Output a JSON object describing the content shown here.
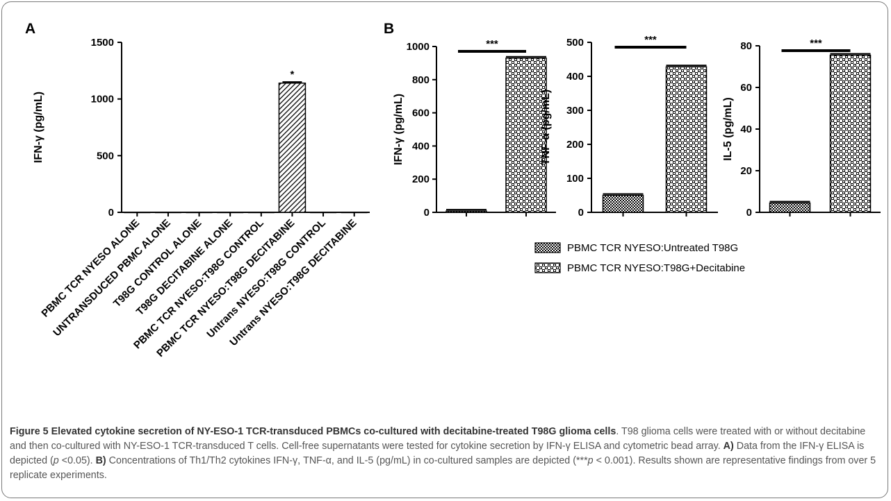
{
  "chart_data": [
    {
      "panel": "A",
      "type": "bar",
      "ylabel": "IFN-γ (pg/mL)",
      "ylim": [
        0,
        1500
      ],
      "yticks": [
        0,
        500,
        1000,
        1500
      ],
      "categories": [
        "PBMC TCR NYESO ALONE",
        "UNTRANSDUCED PBMC ALONE",
        "T98G CONTROL ALONE",
        "T98G DECITABINE ALONE",
        "PBMC TCR NYESO:T98G CONTROL",
        "PBMC TCR NYESO:T98G DECITABINE",
        "Untrans NYESO:T98G CONTROL",
        "Untrans NYESO:T98G DECITABINE"
      ],
      "values": [
        2,
        2,
        2,
        2,
        2,
        1140,
        2,
        2
      ],
      "errors": [
        0,
        0,
        0,
        0,
        0,
        10,
        0,
        0
      ],
      "annotations": [
        {
          "category": "PBMC TCR NYESO:T98G DECITABINE",
          "text": "*"
        }
      ]
    },
    {
      "panel": "B",
      "type": "bar",
      "ylabel": "IFN-γ (pg/mL)",
      "ylim": [
        0,
        1000
      ],
      "yticks": [
        0,
        200,
        400,
        600,
        800,
        1000
      ],
      "series": [
        {
          "name": "PBMC TCR NYESO:Untreated T98G",
          "values": [
            8
          ]
        },
        {
          "name": "PBMC TCR NYESO:T98G+Decitabine",
          "values": [
            930
          ]
        }
      ],
      "annotations": [
        {
          "text": "***"
        }
      ]
    },
    {
      "type": "bar",
      "ylabel": "TNF-α (pg/mL)",
      "ylim": [
        0,
        500
      ],
      "yticks": [
        0,
        100,
        200,
        300,
        400,
        500
      ],
      "series": [
        {
          "name": "PBMC TCR NYESO:Untreated T98G",
          "values": [
            50
          ]
        },
        {
          "name": "PBMC TCR NYESO:T98G+Decitabine",
          "values": [
            428
          ]
        }
      ],
      "annotations": [
        {
          "text": "***"
        }
      ]
    },
    {
      "type": "bar",
      "ylabel": "IL-5 (pg/mL)",
      "ylim": [
        0,
        80
      ],
      "yticks": [
        0,
        20,
        40,
        60,
        80
      ],
      "series": [
        {
          "name": "PBMC TCR NYESO:Untreated T98G",
          "values": [
            4.5
          ]
        },
        {
          "name": "PBMC TCR NYESO:T98G+Decitabine",
          "values": [
            75.5
          ]
        }
      ],
      "annotations": [
        {
          "text": "***"
        }
      ]
    }
  ],
  "legend": [
    "PBMC TCR NYESO:Untreated T98G",
    "PBMC TCR NYESO:T98G+Decitabine"
  ],
  "caption": {
    "figure_label": "Figure 5 Elevated cytokine secretion of NY-ESO-1 TCR-transduced PBMCs co-cultured with decitabine-treated T98G glioma cells",
    "text_1": ". T98 glioma cells were treated with or without decitabine and then co-cultured with NY-ESO-1 TCR-transduced T cells. Cell-free supernatants were tested for cytokine secretion by IFN-γ ELISA and cytometric bead array. ",
    "a_label": "A)",
    "text_2": " Data from the IFN-γ ELISA is depicted (",
    "p_a": "p",
    "text_3": " <0.05). ",
    "b_label": "B)",
    "text_4": " Concentrations of Th1/Th2 cytokines IFN-γ, TNF-α, and IL-5 (pg/mL) in co-cultured samples are depicted (***",
    "p_b": "p",
    "text_5": " < 0.001). Results shown are representative findings from over 5 replicate experiments."
  }
}
